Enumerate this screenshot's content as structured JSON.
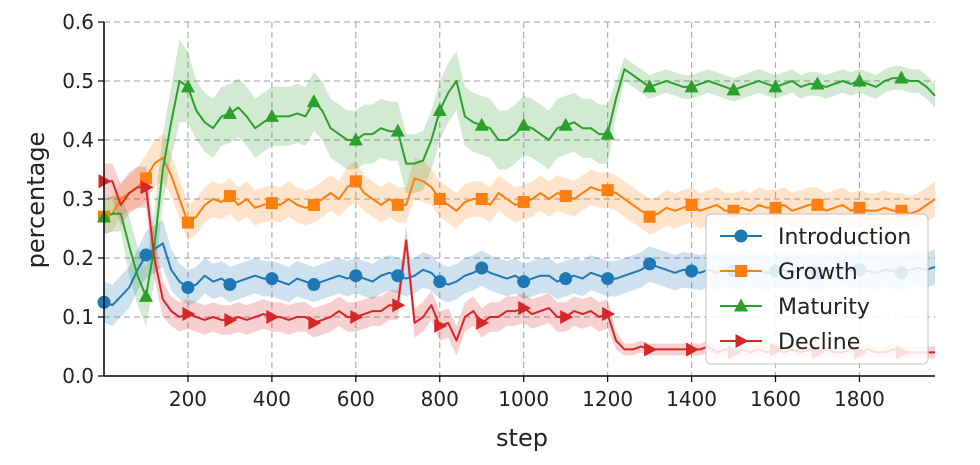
{
  "chart_data": {
    "type": "line",
    "xlabel": "step",
    "ylabel": "percentage",
    "xlim": [
      0,
      1980
    ],
    "ylim": [
      0.0,
      0.6
    ],
    "xticks": [
      200,
      400,
      600,
      800,
      1000,
      1200,
      1400,
      1600,
      1800
    ],
    "xtick_labels": [
      "200",
      "400",
      "600",
      "800",
      "1000",
      "1200",
      "1400",
      "1600",
      "1800"
    ],
    "yticks": [
      0.0,
      0.1,
      0.2,
      0.3,
      0.4,
      0.5,
      0.6
    ],
    "ytick_labels": [
      "0.0",
      "0.1",
      "0.2",
      "0.3",
      "0.4",
      "0.5",
      "0.6"
    ],
    "grid": true,
    "legend_position": "lower-right",
    "x": [
      0,
      20,
      40,
      60,
      80,
      100,
      120,
      140,
      160,
      180,
      200,
      220,
      240,
      260,
      280,
      300,
      320,
      340,
      360,
      380,
      400,
      420,
      440,
      460,
      480,
      500,
      520,
      540,
      560,
      580,
      600,
      620,
      640,
      660,
      680,
      700,
      720,
      740,
      760,
      780,
      800,
      820,
      840,
      860,
      880,
      900,
      920,
      940,
      960,
      980,
      1000,
      1020,
      1040,
      1060,
      1080,
      1100,
      1120,
      1140,
      1160,
      1180,
      1200,
      1220,
      1240,
      1260,
      1280,
      1300,
      1320,
      1340,
      1360,
      1380,
      1400,
      1420,
      1440,
      1460,
      1480,
      1500,
      1520,
      1540,
      1560,
      1580,
      1600,
      1620,
      1640,
      1660,
      1680,
      1700,
      1720,
      1740,
      1760,
      1780,
      1800,
      1820,
      1840,
      1860,
      1880,
      1900,
      1920,
      1940,
      1960,
      1980
    ],
    "series": [
      {
        "name": "Introduction",
        "color": "#1f77b4",
        "marker": "circle",
        "values": [
          0.125,
          0.12,
          0.135,
          0.15,
          0.18,
          0.205,
          0.215,
          0.225,
          0.18,
          0.16,
          0.15,
          0.155,
          0.17,
          0.16,
          0.165,
          0.155,
          0.16,
          0.165,
          0.17,
          0.165,
          0.165,
          0.16,
          0.155,
          0.165,
          0.16,
          0.155,
          0.16,
          0.165,
          0.17,
          0.165,
          0.17,
          0.165,
          0.16,
          0.17,
          0.175,
          0.17,
          0.165,
          0.17,
          0.18,
          0.175,
          0.16,
          0.155,
          0.16,
          0.17,
          0.175,
          0.183,
          0.175,
          0.17,
          0.165,
          0.17,
          0.16,
          0.165,
          0.17,
          0.17,
          0.16,
          0.165,
          0.17,
          0.165,
          0.175,
          0.17,
          0.165,
          0.165,
          0.17,
          0.175,
          0.18,
          0.19,
          0.185,
          0.18,
          0.175,
          0.18,
          0.178,
          0.175,
          0.18,
          0.175,
          0.18,
          0.178,
          0.175,
          0.18,
          0.178,
          0.175,
          0.178,
          0.18,
          0.175,
          0.18,
          0.178,
          0.175,
          0.18,
          0.178,
          0.182,
          0.178,
          0.18,
          0.178,
          0.175,
          0.18,
          0.178,
          0.175,
          0.18,
          0.183,
          0.18,
          0.185
        ],
        "bands": [
          0.035,
          0.035,
          0.035,
          0.035,
          0.035,
          0.04,
          0.04,
          0.04,
          0.035,
          0.03,
          0.03,
          0.03,
          0.03,
          0.03,
          0.03,
          0.03,
          0.03,
          0.03,
          0.03,
          0.03,
          0.03,
          0.03,
          0.03,
          0.03,
          0.03,
          0.03,
          0.03,
          0.03,
          0.03,
          0.03,
          0.03,
          0.03,
          0.03,
          0.03,
          0.03,
          0.03,
          0.03,
          0.03,
          0.03,
          0.03,
          0.03,
          0.03,
          0.03,
          0.03,
          0.03,
          0.03,
          0.03,
          0.03,
          0.03,
          0.03,
          0.03,
          0.03,
          0.03,
          0.03,
          0.03,
          0.03,
          0.03,
          0.03,
          0.03,
          0.03,
          0.03,
          0.03,
          0.03,
          0.03,
          0.03,
          0.03,
          0.03,
          0.03,
          0.03,
          0.03,
          0.03,
          0.03,
          0.03,
          0.03,
          0.03,
          0.03,
          0.03,
          0.03,
          0.03,
          0.03,
          0.03,
          0.03,
          0.03,
          0.03,
          0.03,
          0.03,
          0.03,
          0.03,
          0.03,
          0.03,
          0.03,
          0.03,
          0.03,
          0.03,
          0.03,
          0.03,
          0.03,
          0.03,
          0.03,
          0.03
        ]
      },
      {
        "name": "Growth",
        "color": "#ff7f0e",
        "marker": "square",
        "values": [
          0.27,
          0.275,
          0.3,
          0.31,
          0.32,
          0.335,
          0.36,
          0.37,
          0.34,
          0.3,
          0.26,
          0.27,
          0.29,
          0.3,
          0.295,
          0.305,
          0.29,
          0.3,
          0.285,
          0.29,
          0.293,
          0.29,
          0.3,
          0.29,
          0.285,
          0.29,
          0.3,
          0.31,
          0.3,
          0.32,
          0.33,
          0.31,
          0.3,
          0.29,
          0.3,
          0.29,
          0.29,
          0.335,
          0.33,
          0.32,
          0.3,
          0.29,
          0.28,
          0.295,
          0.3,
          0.3,
          0.29,
          0.31,
          0.3,
          0.29,
          0.295,
          0.3,
          0.31,
          0.3,
          0.31,
          0.305,
          0.3,
          0.31,
          0.32,
          0.315,
          0.315,
          0.31,
          0.3,
          0.29,
          0.28,
          0.27,
          0.275,
          0.285,
          0.28,
          0.285,
          0.29,
          0.28,
          0.285,
          0.29,
          0.28,
          0.28,
          0.285,
          0.28,
          0.29,
          0.285,
          0.285,
          0.29,
          0.28,
          0.285,
          0.29,
          0.29,
          0.28,
          0.285,
          0.29,
          0.28,
          0.285,
          0.28,
          0.28,
          0.285,
          0.28,
          0.28,
          0.275,
          0.28,
          0.29,
          0.3
        ],
        "bands": [
          0.03,
          0.03,
          0.03,
          0.03,
          0.035,
          0.04,
          0.04,
          0.04,
          0.035,
          0.035,
          0.03,
          0.03,
          0.03,
          0.03,
          0.03,
          0.03,
          0.03,
          0.03,
          0.03,
          0.03,
          0.03,
          0.03,
          0.03,
          0.03,
          0.03,
          0.03,
          0.03,
          0.03,
          0.03,
          0.035,
          0.035,
          0.03,
          0.03,
          0.03,
          0.03,
          0.03,
          0.03,
          0.035,
          0.035,
          0.03,
          0.03,
          0.03,
          0.03,
          0.03,
          0.03,
          0.03,
          0.03,
          0.03,
          0.03,
          0.03,
          0.03,
          0.03,
          0.03,
          0.03,
          0.03,
          0.03,
          0.03,
          0.03,
          0.03,
          0.03,
          0.03,
          0.03,
          0.03,
          0.03,
          0.03,
          0.03,
          0.03,
          0.03,
          0.03,
          0.03,
          0.03,
          0.03,
          0.03,
          0.03,
          0.03,
          0.03,
          0.03,
          0.03,
          0.03,
          0.03,
          0.03,
          0.03,
          0.03,
          0.03,
          0.03,
          0.03,
          0.03,
          0.03,
          0.03,
          0.03,
          0.03,
          0.03,
          0.03,
          0.03,
          0.03,
          0.03,
          0.03,
          0.03,
          0.03,
          0.03
        ]
      },
      {
        "name": "Maturity",
        "color": "#2ca02c",
        "marker": "triangle-up",
        "values": [
          0.27,
          0.275,
          0.275,
          0.22,
          0.17,
          0.135,
          0.22,
          0.35,
          0.43,
          0.5,
          0.49,
          0.45,
          0.43,
          0.42,
          0.44,
          0.445,
          0.455,
          0.44,
          0.42,
          0.43,
          0.44,
          0.44,
          0.44,
          0.445,
          0.44,
          0.465,
          0.45,
          0.42,
          0.41,
          0.4,
          0.4,
          0.41,
          0.41,
          0.42,
          0.415,
          0.415,
          0.36,
          0.36,
          0.365,
          0.4,
          0.45,
          0.48,
          0.5,
          0.44,
          0.43,
          0.425,
          0.42,
          0.4,
          0.4,
          0.41,
          0.425,
          0.42,
          0.41,
          0.4,
          0.42,
          0.425,
          0.43,
          0.42,
          0.42,
          0.41,
          0.41,
          0.47,
          0.52,
          0.51,
          0.5,
          0.49,
          0.495,
          0.5,
          0.495,
          0.49,
          0.49,
          0.495,
          0.5,
          0.495,
          0.49,
          0.485,
          0.49,
          0.495,
          0.5,
          0.495,
          0.49,
          0.495,
          0.5,
          0.49,
          0.495,
          0.495,
          0.49,
          0.495,
          0.5,
          0.495,
          0.5,
          0.495,
          0.49,
          0.5,
          0.505,
          0.505,
          0.5,
          0.5,
          0.49,
          0.475
        ],
        "bands": [
          0.03,
          0.03,
          0.03,
          0.05,
          0.05,
          0.05,
          0.06,
          0.06,
          0.06,
          0.07,
          0.06,
          0.05,
          0.05,
          0.05,
          0.05,
          0.05,
          0.05,
          0.05,
          0.05,
          0.05,
          0.05,
          0.05,
          0.05,
          0.05,
          0.05,
          0.05,
          0.05,
          0.05,
          0.05,
          0.05,
          0.05,
          0.05,
          0.05,
          0.05,
          0.05,
          0.05,
          0.05,
          0.05,
          0.05,
          0.05,
          0.05,
          0.05,
          0.05,
          0.05,
          0.05,
          0.05,
          0.05,
          0.05,
          0.05,
          0.05,
          0.05,
          0.05,
          0.05,
          0.05,
          0.05,
          0.05,
          0.05,
          0.05,
          0.05,
          0.05,
          0.05,
          0.03,
          0.02,
          0.02,
          0.02,
          0.02,
          0.02,
          0.02,
          0.02,
          0.02,
          0.02,
          0.02,
          0.02,
          0.02,
          0.02,
          0.02,
          0.02,
          0.02,
          0.02,
          0.02,
          0.02,
          0.02,
          0.02,
          0.02,
          0.02,
          0.02,
          0.02,
          0.02,
          0.02,
          0.02,
          0.02,
          0.02,
          0.02,
          0.02,
          0.02,
          0.02,
          0.02,
          0.02,
          0.02,
          0.02
        ]
      },
      {
        "name": "Decline",
        "color": "#d62728",
        "marker": "triangle-right",
        "values": [
          0.33,
          0.33,
          0.29,
          0.31,
          0.32,
          0.32,
          0.2,
          0.13,
          0.11,
          0.1,
          0.105,
          0.1,
          0.095,
          0.1,
          0.095,
          0.095,
          0.1,
          0.095,
          0.1,
          0.105,
          0.1,
          0.1,
          0.095,
          0.1,
          0.1,
          0.09,
          0.095,
          0.1,
          0.11,
          0.1,
          0.1,
          0.105,
          0.11,
          0.11,
          0.12,
          0.12,
          0.23,
          0.09,
          0.1,
          0.12,
          0.085,
          0.09,
          0.06,
          0.1,
          0.11,
          0.09,
          0.1,
          0.1,
          0.11,
          0.11,
          0.115,
          0.105,
          0.11,
          0.115,
          0.1,
          0.1,
          0.11,
          0.105,
          0.11,
          0.1,
          0.105,
          0.06,
          0.045,
          0.045,
          0.05,
          0.045,
          0.045,
          0.045,
          0.045,
          0.045,
          0.045,
          0.045,
          0.05,
          0.04,
          0.045,
          0.04,
          0.045,
          0.04,
          0.045,
          0.04,
          0.045,
          0.04,
          0.045,
          0.04,
          0.045,
          0.04,
          0.045,
          0.04,
          0.04,
          0.045,
          0.04,
          0.045,
          0.04,
          0.04,
          0.045,
          0.04,
          0.04,
          0.04,
          0.04,
          0.04
        ],
        "bands": [
          0.03,
          0.03,
          0.035,
          0.035,
          0.035,
          0.035,
          0.035,
          0.03,
          0.025,
          0.025,
          0.025,
          0.025,
          0.025,
          0.025,
          0.025,
          0.025,
          0.025,
          0.025,
          0.025,
          0.025,
          0.025,
          0.025,
          0.025,
          0.025,
          0.025,
          0.025,
          0.025,
          0.025,
          0.025,
          0.025,
          0.025,
          0.025,
          0.025,
          0.025,
          0.025,
          0.025,
          0.025,
          0.025,
          0.025,
          0.025,
          0.025,
          0.025,
          0.025,
          0.025,
          0.025,
          0.025,
          0.025,
          0.025,
          0.025,
          0.025,
          0.025,
          0.025,
          0.025,
          0.025,
          0.025,
          0.025,
          0.025,
          0.025,
          0.025,
          0.025,
          0.025,
          0.015,
          0.01,
          0.01,
          0.01,
          0.01,
          0.01,
          0.01,
          0.01,
          0.01,
          0.01,
          0.01,
          0.01,
          0.01,
          0.01,
          0.01,
          0.01,
          0.01,
          0.01,
          0.01,
          0.01,
          0.01,
          0.01,
          0.01,
          0.01,
          0.01,
          0.01,
          0.01,
          0.01,
          0.01,
          0.01,
          0.01,
          0.01,
          0.01,
          0.01,
          0.01,
          0.01,
          0.01,
          0.01,
          0.01
        ]
      }
    ],
    "marker_x": [
      0,
      100,
      200,
      300,
      400,
      500,
      600,
      700,
      800,
      900,
      1000,
      1100,
      1200,
      1300,
      1400,
      1500,
      1600,
      1700,
      1800,
      1900
    ]
  }
}
